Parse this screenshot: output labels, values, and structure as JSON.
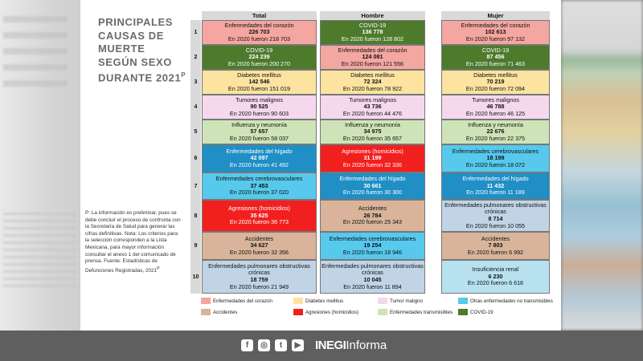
{
  "title": "Principales causas de muerte según sexo durante 2021",
  "title_sup": "P",
  "headers": {
    "total": "Total",
    "hombre": "Hombre",
    "mujer": "Mujer"
  },
  "ranks": [
    "1",
    "2",
    "3",
    "4",
    "5",
    "6",
    "7",
    "8",
    "9",
    "10"
  ],
  "colors": {
    "corazon": "#f4a6a0",
    "covid": "#4e7a2c",
    "diabetes": "#fce3a0",
    "tumor": "#f5d8ee",
    "influenza": "#cfe3b8",
    "higado": "#1f8fc6",
    "cerebro": "#56c9ec",
    "agresiones": "#f21f1f",
    "accidentes": "#d9b49a",
    "pulmonar": "#c0d4e6",
    "renal": "#b8e1f0"
  },
  "total": [
    {
      "cause": "Enfermedades del corazón",
      "value": "226 703",
      "prev": "En 2020 fueron 218 703",
      "color": "corazon"
    },
    {
      "cause": "COVID-19",
      "value": "224 239",
      "prev": "En 2020 fueron 200 270",
      "color": "covid"
    },
    {
      "cause": "Diabetes mellitus",
      "value": "142 546",
      "prev": "En 2020 fueron 151 019",
      "color": "diabetes"
    },
    {
      "cause": "Tumores malignos",
      "value": "90 525",
      "prev": "En 2020 fueron 90 603",
      "color": "tumor"
    },
    {
      "cause": "Influenza y neumonía",
      "value": "57 657",
      "prev": "En 2020 fueron 58 037",
      "color": "influenza"
    },
    {
      "cause": "Enfermedades del hígado",
      "value": "42 097",
      "prev": "En 2020 fueron 41 492",
      "color": "higado"
    },
    {
      "cause": "Enfermedades cerebrovasculares",
      "value": "37 453",
      "prev": "En 2020 fueron 37 020",
      "color": "cerebro"
    },
    {
      "cause": "Agresiones (homicidios)",
      "value": "35 625",
      "prev": "En 2020 fueron 36 773",
      "color": "agresiones"
    },
    {
      "cause": "Accidentes",
      "value": "34 627",
      "prev": "En 2020 fueron 32 356",
      "color": "accidentes"
    },
    {
      "cause": "Enfermedades pulmonares obstructivas crónicas",
      "value": "18 759",
      "prev": "En 2020 fueron 21 949",
      "color": "pulmonar"
    }
  ],
  "hombre": [
    {
      "cause": "COVID-19",
      "value": "136 778",
      "prev": "En 2020 fueron 128 802",
      "color": "covid"
    },
    {
      "cause": "Enfermedades del corazón",
      "value": "124 081",
      "prev": "En 2020 fueron 121 556",
      "color": "corazon"
    },
    {
      "cause": "Diabetes mellitus",
      "value": "72 324",
      "prev": "En 2020 fueron 78 922",
      "color": "diabetes"
    },
    {
      "cause": "Tumores malignos",
      "value": "43 736",
      "prev": "En 2020 fueron 44 476",
      "color": "tumor"
    },
    {
      "cause": "Influenza y neumonía",
      "value": "34 975",
      "prev": "En 2020 fueron 35 657",
      "color": "influenza"
    },
    {
      "cause": "Agresiones (homicidios)",
      "value": "31 199",
      "prev": "En 2020 fueron 32 336",
      "color": "agresiones"
    },
    {
      "cause": "Enfermedades del hígado",
      "value": "30 661",
      "prev": "En 2020 fueron 30 300",
      "color": "higado"
    },
    {
      "cause": "Accidentes",
      "value": "26 784",
      "prev": "En 2020 fueron 25 343",
      "color": "accidentes"
    },
    {
      "cause": "Enfermedades cerebrovasculares",
      "value": "19 254",
      "prev": "En 2020 fueron 18 946",
      "color": "cerebro"
    },
    {
      "cause": "Enfermedades pulmonares obstructivas crónicas",
      "value": "10 045",
      "prev": "En 2020 fueron 11 894",
      "color": "pulmonar"
    }
  ],
  "mujer": [
    {
      "cause": "Enfermedades del corazón",
      "value": "102 613",
      "prev": "En 2020 fueron 97 132",
      "color": "corazon"
    },
    {
      "cause": "COVID-19",
      "value": "87 456",
      "prev": "En 2020 fueron 71 463",
      "color": "covid"
    },
    {
      "cause": "Diabetes mellitus",
      "value": "70 219",
      "prev": "En 2020 fueron 72 094",
      "color": "diabetes"
    },
    {
      "cause": "Tumores malignos",
      "value": "46 788",
      "prev": "En 2020 fueron 46 125",
      "color": "tumor"
    },
    {
      "cause": "Influenza y neumonía",
      "value": "22 676",
      "prev": "En 2020 fueron 22 375",
      "color": "influenza"
    },
    {
      "cause": "Enfermedades cerebrovasculares",
      "value": "18 199",
      "prev": "En 2020 fueron 18 072",
      "color": "cerebro"
    },
    {
      "cause": "Enfermedades del hígado",
      "value": "11 432",
      "prev": "En 2020 fueron 11 189",
      "color": "higado"
    },
    {
      "cause": "Enfermedades pulmonares obstructivas crónicas",
      "value": "8 714",
      "prev": "En 2020 fueron 10 055",
      "color": "pulmonar"
    },
    {
      "cause": "Accidentes",
      "value": "7 803",
      "prev": "En 2020 fueron 6 992",
      "color": "accidentes"
    },
    {
      "cause": "Insuficiencia renal",
      "value": "6 230",
      "prev": "En 2020 fueron 6 618",
      "color": "renal"
    }
  ],
  "notes": "P: La información es preliminar, pues se debe concluir el proceso de confronta con la Secretaría de Salud para generar las cifras definitivas. Nota: Los criterios para la selección corresponden a la Lista Mexicana, para mayor información consultar el anexo 1 del comunicado de prensa. Fuente: Estadísticas de Defunciones Registradas, 2021",
  "notes_sup": "P",
  "legend": [
    {
      "label": "Enfermedades del corazón",
      "color": "#f4a6a0"
    },
    {
      "label": "Accidentes",
      "color": "#d9b49a"
    },
    {
      "label": "Diabetes mellitus",
      "color": "#fce3a0"
    },
    {
      "label": "Agresiones (homicidios)",
      "color": "#f21f1f"
    },
    {
      "label": "Tumor maligno",
      "color": "#f5d8ee"
    },
    {
      "label": "Enfermedades transmisibles",
      "color": "#cfe3b8"
    },
    {
      "label": "Otras enfermedades no transmisibles",
      "color": "#56c9ec"
    },
    {
      "label": "COVID-19",
      "color": "#4e7a2c"
    }
  ],
  "footer": {
    "brand_bold": "INEGI",
    "brand_light": "Informa",
    "social": [
      {
        "icon": "facebook-icon",
        "glyph": "f"
      },
      {
        "icon": "instagram-icon",
        "glyph": "◎"
      },
      {
        "icon": "twitter-icon",
        "glyph": "t"
      },
      {
        "icon": "youtube-icon",
        "glyph": "▶"
      }
    ]
  }
}
